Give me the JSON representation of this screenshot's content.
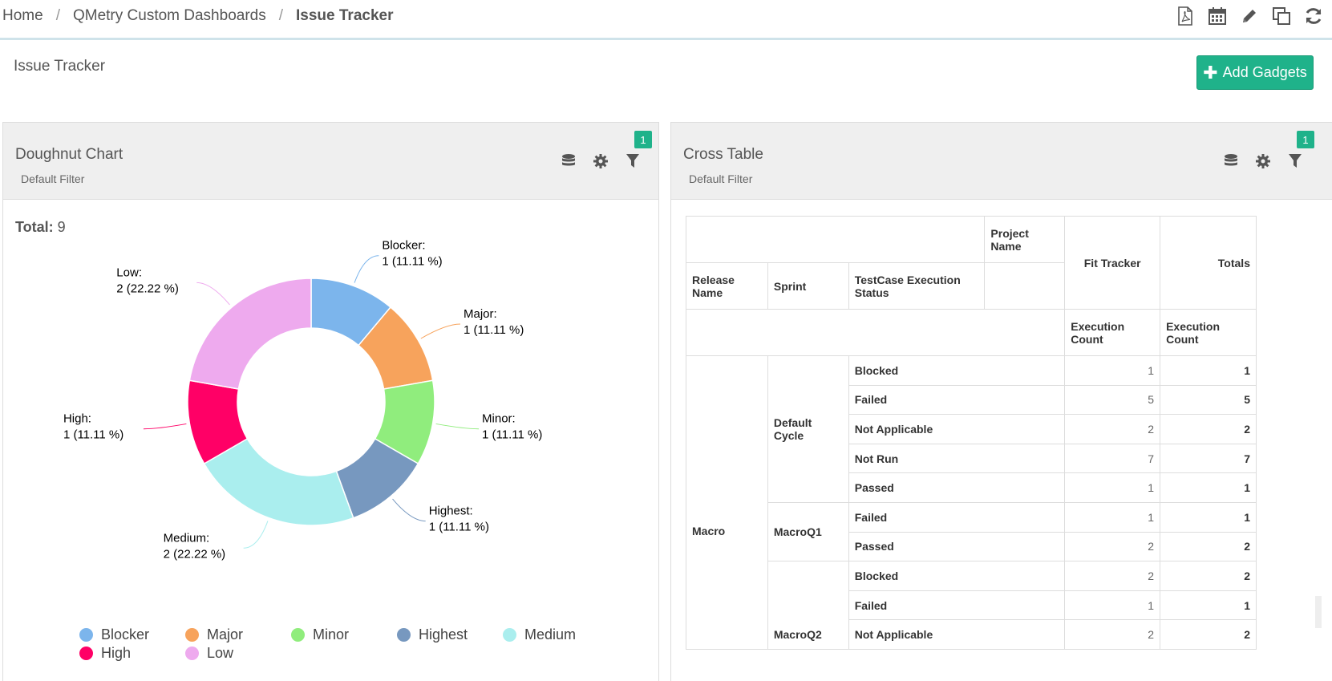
{
  "breadcrumb": {
    "home": "Home",
    "dashboards": "QMetry Custom Dashboards",
    "current": "Issue Tracker",
    "sep": "/"
  },
  "page": {
    "title": "Issue Tracker",
    "add_button": "Add Gadgets"
  },
  "doughnut_panel": {
    "title": "Doughnut Chart",
    "subtitle": "Default Filter",
    "filter_badge": "1",
    "total_label": "Total:",
    "total_value": "9"
  },
  "chart_data": {
    "type": "pie",
    "categories": [
      "Blocker",
      "Major",
      "Minor",
      "Highest",
      "Medium",
      "High",
      "Low"
    ],
    "values": [
      1,
      1,
      1,
      1,
      2,
      1,
      2
    ],
    "labels": [
      "1 (11.11 %)",
      "1 (11.11 %)",
      "1 (11.11 %)",
      "1 (11.11 %)",
      "2 (22.22 %)",
      "1 (11.11 %)",
      "2 (22.22 %)"
    ],
    "colors": [
      "#7cb5ec",
      "#f7a35c",
      "#90ed7d",
      "#7798bf",
      "#aaeeee",
      "#ff0066",
      "#eeaaee"
    ],
    "total": 9,
    "legend_position": "bottom"
  },
  "cross_panel": {
    "title": "Cross Table",
    "subtitle": "Default Filter",
    "filter_badge": "1",
    "headers": {
      "project_name": "Project Name",
      "fit_tracker": "Fit Tracker",
      "totals": "Totals",
      "release_name": "Release Name",
      "sprint": "Sprint",
      "status": "TestCase Execution Status",
      "execution_count": "Execution Count"
    },
    "release": "Macro",
    "groups": [
      {
        "sprint": "Default Cycle",
        "rows": [
          {
            "status": "Blocked",
            "count": "1",
            "total": "1"
          },
          {
            "status": "Failed",
            "count": "5",
            "total": "5"
          },
          {
            "status": "Not Applicable",
            "count": "2",
            "total": "2"
          },
          {
            "status": "Not Run",
            "count": "7",
            "total": "7"
          },
          {
            "status": "Passed",
            "count": "1",
            "total": "1"
          }
        ]
      },
      {
        "sprint": "MacroQ1",
        "rows": [
          {
            "status": "Failed",
            "count": "1",
            "total": "1"
          },
          {
            "status": "Passed",
            "count": "2",
            "total": "2"
          }
        ]
      },
      {
        "sprint": "MacroQ2",
        "rows": [
          {
            "status": "Blocked",
            "count": "2",
            "total": "2"
          },
          {
            "status": "Failed",
            "count": "1",
            "total": "1"
          },
          {
            "status": "Not Applicable",
            "count": "2",
            "total": "2"
          }
        ]
      }
    ]
  }
}
